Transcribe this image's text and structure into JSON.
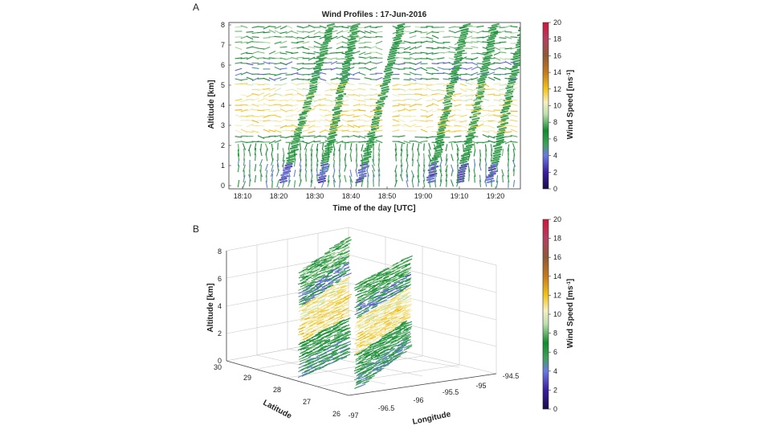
{
  "chart_data": [
    {
      "panel": "A",
      "type": "wind-barb time-height plot",
      "title": "Wind Profiles : 17-Jun-2016",
      "xlabel": "Time of the day [UTC]",
      "ylabel": "Altitude [km]",
      "x_ticks": [
        "18:10",
        "18:20",
        "18:30",
        "18:40",
        "18:50",
        "19:00",
        "19:10",
        "19:20"
      ],
      "y_ticks": [
        "0",
        "1",
        "2",
        "3",
        "4",
        "5",
        "6",
        "7",
        "8"
      ],
      "ylim": [
        0,
        8.2
      ],
      "colorbar": {
        "label": "Wind Speed [ms",
        "label_sup": "-1",
        "label_end": "]",
        "ticks": [
          "0",
          "2",
          "4",
          "6",
          "8",
          "10",
          "12",
          "14",
          "16",
          "18",
          "20"
        ],
        "range": [
          0,
          20
        ]
      }
    },
    {
      "panel": "B",
      "type": "3d wind-barb plot",
      "zlabel": "Altitude [km]",
      "ylabel": "Latitude",
      "xlabel": "Longitude",
      "z_ticks": [
        "0",
        "2",
        "4",
        "6",
        "8"
      ],
      "lat_ticks": [
        "30",
        "29",
        "28",
        "27",
        "26"
      ],
      "lon_ticks": [
        "-97",
        "-96.5",
        "-96",
        "-95.5",
        "-95",
        "-94.5"
      ],
      "colorbar": {
        "label": "Wind Speed [ms",
        "label_sup": "-1",
        "label_end": "]",
        "ticks": [
          "0",
          "2",
          "4",
          "6",
          "8",
          "10",
          "12",
          "14",
          "16",
          "18",
          "20"
        ],
        "range": [
          0,
          20
        ]
      }
    }
  ]
}
